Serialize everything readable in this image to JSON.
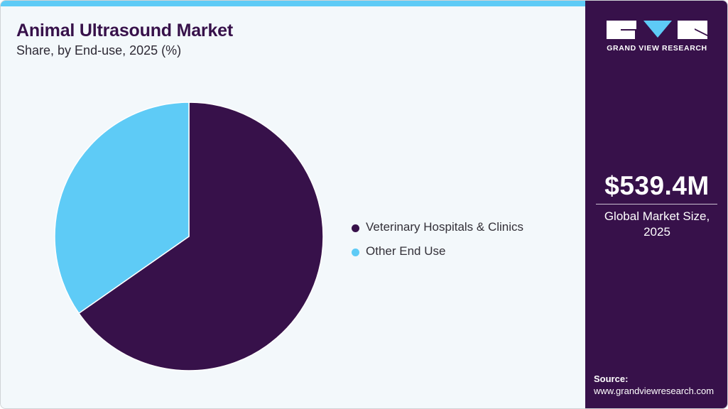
{
  "header": {
    "title": "Animal Ultrasound Market",
    "subtitle": "Share, by End-use, 2025 (%)"
  },
  "colors": {
    "primary_dark": "#37114a",
    "accent_light": "#5ecbf6",
    "background": "#f3f8fb"
  },
  "legend": {
    "items": [
      {
        "label": "Veterinary Hospitals & Clinics",
        "color": "#37114a"
      },
      {
        "label": "Other End Use",
        "color": "#5ecbf6"
      }
    ]
  },
  "sidebar": {
    "brand": "GRAND VIEW RESEARCH",
    "market_value": "$539.4M",
    "market_label_line1": "Global Market Size,",
    "market_label_line2": "2025",
    "source_label": "Source:",
    "source_url": "www.grandviewresearch.com"
  },
  "chart_data": {
    "type": "pie",
    "title": "Animal Ultrasound Market",
    "subtitle": "Share, by End-use, 2025 (%)",
    "categories": [
      "Veterinary Hospitals & Clinics",
      "Other End Use"
    ],
    "values": [
      65.3,
      34.7
    ],
    "colors": [
      "#37114a",
      "#5ecbf6"
    ],
    "start_angle_deg": 0,
    "direction": "clockwise",
    "legend_position": "right",
    "annotations": [
      {
        "text": "$539.4M",
        "note": "Global Market Size, 2025"
      }
    ]
  }
}
